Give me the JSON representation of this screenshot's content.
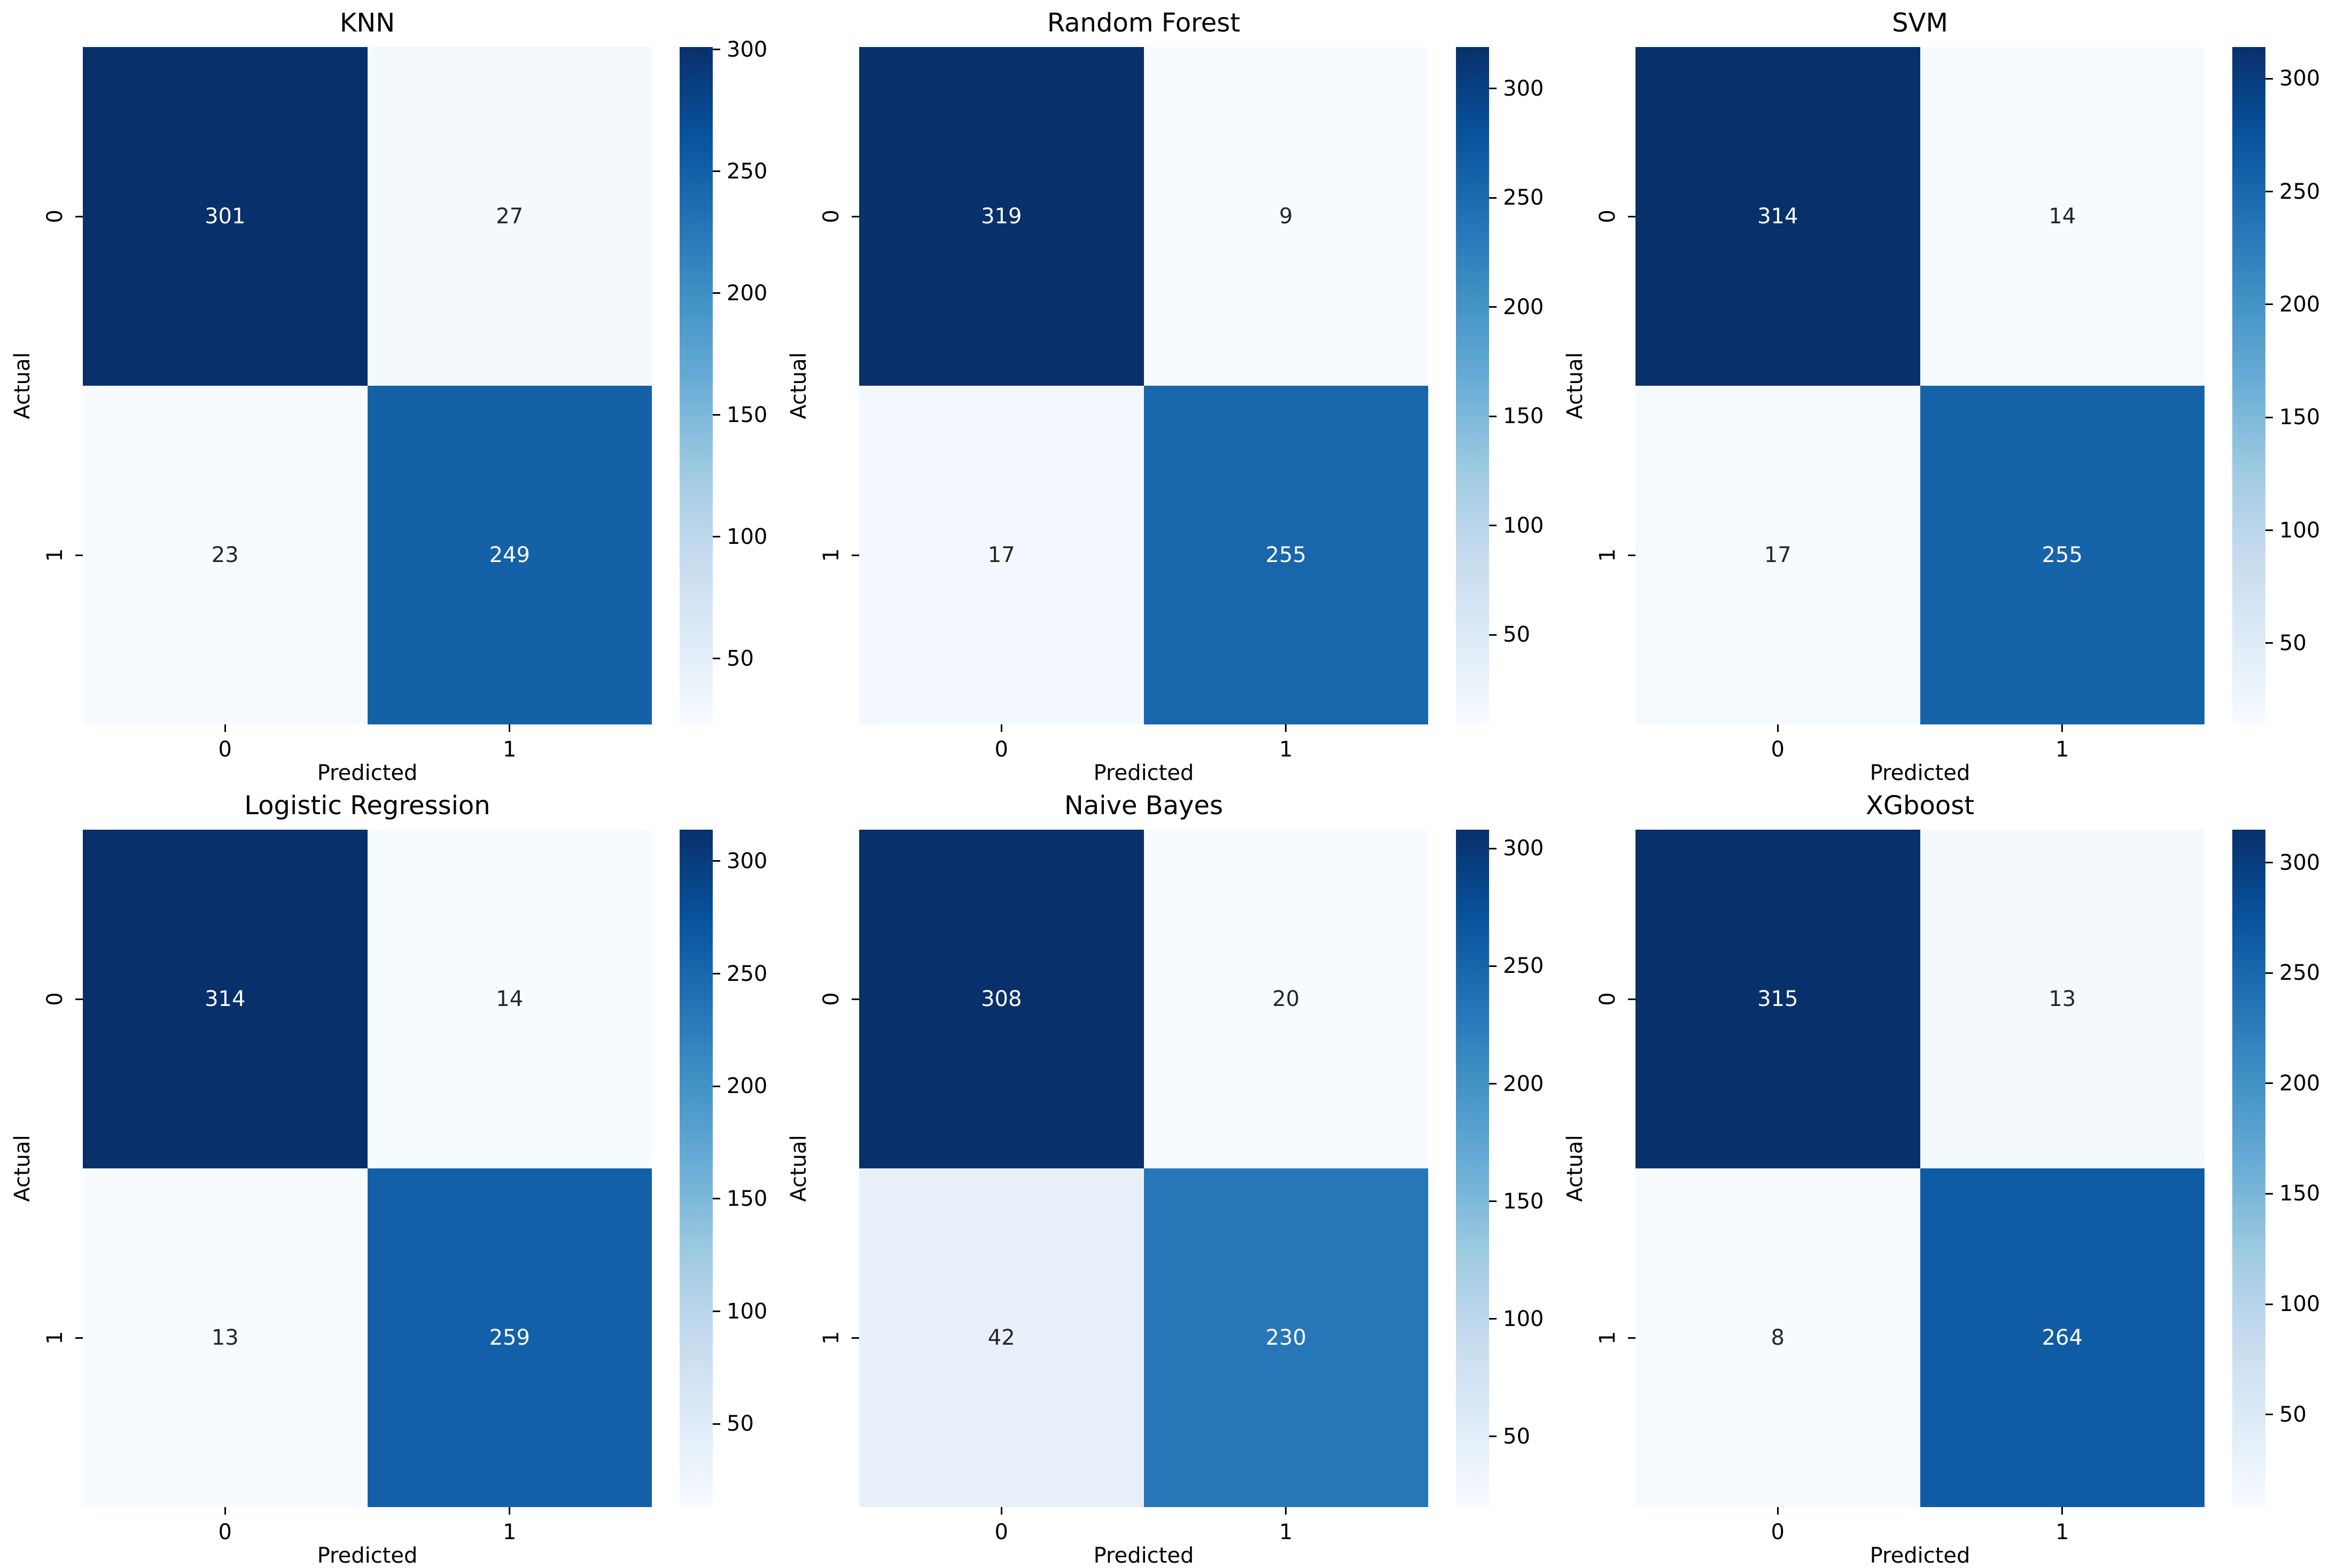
{
  "figure": {
    "background": "#ffffff",
    "text_color": "#000000",
    "annotation_color_on_dark": "#ffffff",
    "annotation_color_on_light": "#262626"
  },
  "chart_data": {
    "type": "heatmap",
    "subtype": "confusion-matrix-grid",
    "grid": {
      "rows": 2,
      "cols": 3
    },
    "colormap": "Blues",
    "colormap_stops": [
      "#f7fbff",
      "#deebf7",
      "#c6dbef",
      "#9ecae1",
      "#6baed6",
      "#4292c6",
      "#2171b5",
      "#08519c",
      "#08306b"
    ],
    "xlabel": "Predicted",
    "ylabel": "Actual",
    "x_ticklabels": [
      "0",
      "1"
    ],
    "y_ticklabels": [
      "0",
      "1"
    ],
    "colorbar_ticks": [
      50,
      100,
      150,
      200,
      250,
      300
    ],
    "legend": "colorbar per subplot, range = min..max of each matrix",
    "matrices": [
      {
        "title": "KNN",
        "values": [
          [
            301,
            27
          ],
          [
            23,
            249
          ]
        ]
      },
      {
        "title": "Random Forest",
        "values": [
          [
            319,
            9
          ],
          [
            17,
            255
          ]
        ]
      },
      {
        "title": "SVM",
        "values": [
          [
            314,
            14
          ],
          [
            17,
            255
          ]
        ]
      },
      {
        "title": "Logistic Regression",
        "values": [
          [
            314,
            14
          ],
          [
            13,
            259
          ]
        ]
      },
      {
        "title": "Naive Bayes",
        "values": [
          [
            308,
            20
          ],
          [
            42,
            230
          ]
        ]
      },
      {
        "title": "XGboost",
        "values": [
          [
            315,
            13
          ],
          [
            8,
            264
          ]
        ]
      }
    ]
  }
}
